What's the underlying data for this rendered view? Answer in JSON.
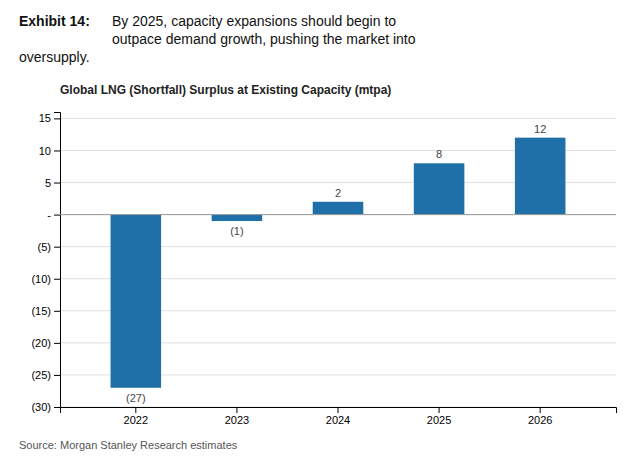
{
  "chart_data": {
    "type": "bar",
    "exhibit_label": "Exhibit 14:",
    "headline": [
      "By 2025, capacity expansions should begin to",
      "outpace demand growth, pushing the market into",
      "oversupply."
    ],
    "title": "Global LNG (Shortfall) Surplus at Existing Capacity (mtpa)",
    "source": "Source: Morgan Stanley Research estimates",
    "categories": [
      "2022",
      "2023",
      "2024",
      "2025",
      "2026"
    ],
    "values": [
      -27,
      -1,
      2,
      8,
      12
    ],
    "value_labels": [
      "(27)",
      "(1)",
      "2",
      "8",
      "12"
    ],
    "data_labels": true,
    "color": "#1f6fa8",
    "ylim": [
      -30,
      16
    ],
    "yticks": [
      {
        "value": -30,
        "label": "(30)"
      },
      {
        "value": -25,
        "label": "(25)"
      },
      {
        "value": -20,
        "label": "(20)"
      },
      {
        "value": -15,
        "label": "(15)"
      },
      {
        "value": -10,
        "label": "(10)"
      },
      {
        "value": -5,
        "label": "(5)"
      },
      {
        "value": 0,
        "label": "-"
      },
      5,
      10,
      15
    ],
    "grid": true
  }
}
